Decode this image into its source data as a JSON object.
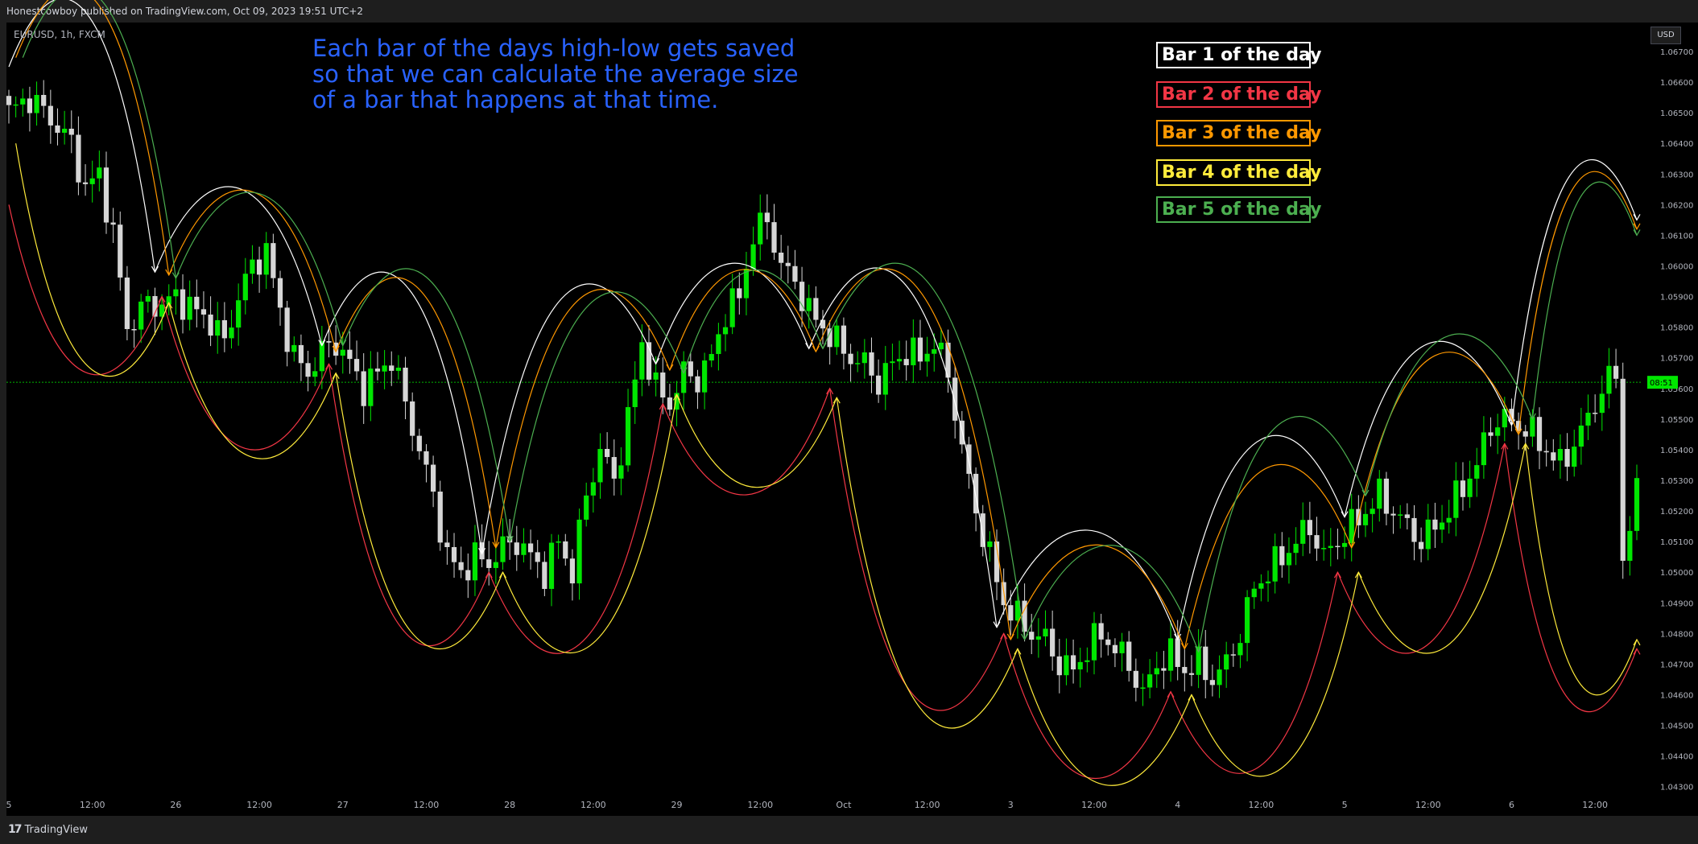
{
  "header": {
    "published": "Honestcowboy published on TradingView.com, Oct 09, 2023 19:51 UTC+2"
  },
  "footer": {
    "brand": "TradingView",
    "logo_icon": "tradingview-logo-icon"
  },
  "symbol_label": "EURUSD, 1h, FXCM",
  "currency_button": "USD",
  "annotation": "Each bar of the days high-low gets saved\nso that we can calculate the average size\nof a bar that happens at that time.",
  "colors": {
    "bull": "#00e600",
    "bear": "#d6d6d6",
    "bar1": "#ffffff",
    "bar2": "#f23645",
    "bar3": "#ff9800",
    "bar4": "#ffeb3b",
    "bar5": "#4caf50",
    "price_line": "#00e600"
  },
  "legend": [
    {
      "label": "Bar 1 of the day",
      "color": "#ffffff"
    },
    {
      "label": "Bar 2 of the day",
      "color": "#f23645"
    },
    {
      "label": "Bar 3 of the day",
      "color": "#ff9800"
    },
    {
      "label": "Bar 4 of the day",
      "color": "#ffeb3b"
    },
    {
      "label": "Bar 5 of the day",
      "color": "#4caf50"
    }
  ],
  "chart_data": {
    "type": "candlestick",
    "symbol": "EURUSD",
    "timeframe": "1h",
    "y_axis": {
      "range": [
        1.0425,
        1.0675
      ],
      "ticks": [
        "1.06700",
        "1.06600",
        "1.06500",
        "1.06400",
        "1.06300",
        "1.06200",
        "1.06100",
        "1.06000",
        "1.05900",
        "1.05800",
        "1.05700",
        "1.05600",
        "1.05500",
        "1.05400",
        "1.05300",
        "1.05200",
        "1.05100",
        "1.05000",
        "1.04900",
        "1.04800",
        "1.04700",
        "1.04600",
        "1.04500",
        "1.04400",
        "1.04300"
      ]
    },
    "x_axis": {
      "ticks": [
        {
          "label": "5",
          "bar": 0
        },
        {
          "label": "12:00",
          "bar": 12
        },
        {
          "label": "26",
          "bar": 24
        },
        {
          "label": "12:00",
          "bar": 36
        },
        {
          "label": "27",
          "bar": 48
        },
        {
          "label": "12:00",
          "bar": 60
        },
        {
          "label": "28",
          "bar": 72
        },
        {
          "label": "12:00",
          "bar": 84
        },
        {
          "label": "29",
          "bar": 96
        },
        {
          "label": "12:00",
          "bar": 108
        },
        {
          "label": "Oct",
          "bar": 120
        },
        {
          "label": "12:00",
          "bar": 132
        },
        {
          "label": "3",
          "bar": 144
        },
        {
          "label": "12:00",
          "bar": 156
        },
        {
          "label": "4",
          "bar": 168
        },
        {
          "label": "12:00",
          "bar": 180
        },
        {
          "label": "5",
          "bar": 192
        },
        {
          "label": "12:00",
          "bar": 204
        },
        {
          "label": "6",
          "bar": 216
        },
        {
          "label": "12:00",
          "bar": 228
        }
      ]
    },
    "current_price": {
      "value": 1.0562,
      "countdown": "08:51"
    },
    "closes_anchor": [
      [
        0,
        1.065
      ],
      [
        3,
        1.0655
      ],
      [
        6,
        1.0648
      ],
      [
        9,
        1.064
      ],
      [
        11,
        1.0625
      ],
      [
        13,
        1.063
      ],
      [
        15,
        1.061
      ],
      [
        17,
        1.058
      ],
      [
        20,
        1.0588
      ],
      [
        22,
        1.0587
      ],
      [
        24,
        1.059
      ],
      [
        27,
        1.0585
      ],
      [
        29,
        1.0582
      ],
      [
        31,
        1.0575
      ],
      [
        33,
        1.059
      ],
      [
        35,
        1.06
      ],
      [
        37,
        1.0605
      ],
      [
        39,
        1.0585
      ],
      [
        41,
        1.057
      ],
      [
        43,
        1.0565
      ],
      [
        45,
        1.0572
      ],
      [
        47,
        1.0575
      ],
      [
        49,
        1.0568
      ],
      [
        51,
        1.056
      ],
      [
        53,
        1.0565
      ],
      [
        55,
        1.057
      ],
      [
        57,
        1.0555
      ],
      [
        59,
        1.054
      ],
      [
        61,
        1.0525
      ],
      [
        63,
        1.0505
      ],
      [
        65,
        1.05
      ],
      [
        67,
        1.0505
      ],
      [
        69,
        1.0503
      ],
      [
        71,
        1.0508
      ],
      [
        73,
        1.051
      ],
      [
        75,
        1.0505
      ],
      [
        77,
        1.05
      ],
      [
        79,
        1.051
      ],
      [
        81,
        1.05
      ],
      [
        83,
        1.0525
      ],
      [
        85,
        1.054
      ],
      [
        87,
        1.053
      ],
      [
        89,
        1.055
      ],
      [
        91,
        1.0575
      ],
      [
        93,
        1.056
      ],
      [
        95,
        1.0555
      ],
      [
        97,
        1.0565
      ],
      [
        99,
        1.0563
      ],
      [
        101,
        1.057
      ],
      [
        103,
        1.0585
      ],
      [
        105,
        1.059
      ],
      [
        107,
        1.061
      ],
      [
        109,
        1.0615
      ],
      [
        111,
        1.06
      ],
      [
        113,
        1.0595
      ],
      [
        115,
        1.0585
      ],
      [
        117,
        1.058
      ],
      [
        119,
        1.0575
      ],
      [
        121,
        1.057
      ],
      [
        123,
        1.0568
      ],
      [
        125,
        1.0562
      ],
      [
        127,
        1.0568
      ],
      [
        129,
        1.0572
      ],
      [
        131,
        1.057
      ],
      [
        133,
        1.0575
      ],
      [
        135,
        1.0565
      ],
      [
        137,
        1.054
      ],
      [
        139,
        1.052
      ],
      [
        141,
        1.0505
      ],
      [
        143,
        1.049
      ],
      [
        145,
        1.0485
      ],
      [
        147,
        1.048
      ],
      [
        149,
        1.0478
      ],
      [
        151,
        1.047
      ],
      [
        153,
        1.0468
      ],
      [
        155,
        1.0475
      ],
      [
        157,
        1.048
      ],
      [
        159,
        1.0475
      ],
      [
        161,
        1.047
      ],
      [
        163,
        1.046
      ],
      [
        165,
        1.047
      ],
      [
        167,
        1.0473
      ],
      [
        169,
        1.0468
      ],
      [
        171,
        1.047
      ],
      [
        173,
        1.0465
      ],
      [
        175,
        1.047
      ],
      [
        177,
        1.048
      ],
      [
        179,
        1.0495
      ],
      [
        181,
        1.05
      ],
      [
        183,
        1.0505
      ],
      [
        185,
        1.051
      ],
      [
        187,
        1.0515
      ],
      [
        189,
        1.0505
      ],
      [
        191,
        1.051
      ],
      [
        193,
        1.0515
      ],
      [
        195,
        1.052
      ],
      [
        197,
        1.0525
      ],
      [
        199,
        1.052
      ],
      [
        201,
        1.0515
      ],
      [
        203,
        1.051
      ],
      [
        205,
        1.0515
      ],
      [
        207,
        1.052
      ],
      [
        209,
        1.0528
      ],
      [
        211,
        1.0535
      ],
      [
        213,
        1.0548
      ],
      [
        215,
        1.055
      ],
      [
        217,
        1.0548
      ],
      [
        219,
        1.0545
      ],
      [
        221,
        1.054
      ],
      [
        223,
        1.0535
      ],
      [
        225,
        1.0542
      ],
      [
        227,
        1.055
      ],
      [
        229,
        1.056
      ],
      [
        231,
        1.0565
      ],
      [
        232,
        1.0505
      ],
      [
        233,
        1.0515
      ],
      [
        234,
        1.0525
      ]
    ],
    "day_bars": [
      {
        "bar": 1,
        "color": "#ffffff",
        "anchors": [
          [
            0,
            1.0665
          ],
          [
            21,
            1.0598
          ],
          [
            45,
            1.0574
          ],
          [
            68,
            1.0506
          ],
          [
            93,
            1.0568
          ],
          [
            115,
            1.0573
          ],
          [
            142,
            1.0482
          ],
          [
            168,
            1.0478
          ],
          [
            192,
            1.0518
          ],
          [
            216,
            1.0548
          ],
          [
            234,
            1.0615
          ]
        ]
      },
      {
        "bar": 2,
        "color": "#f23645",
        "anchors": [
          [
            0,
            1.062
          ],
          [
            22,
            1.059
          ],
          [
            46,
            1.0568
          ],
          [
            69,
            1.05
          ],
          [
            94,
            1.0555
          ],
          [
            118,
            1.056
          ],
          [
            143,
            1.048
          ],
          [
            167,
            1.0461
          ],
          [
            191,
            1.05
          ],
          [
            215,
            1.0542
          ],
          [
            234,
            1.0475
          ]
        ]
      },
      {
        "bar": 3,
        "color": "#ff9800",
        "anchors": [
          [
            1,
            1.0668
          ],
          [
            23,
            1.0597
          ],
          [
            47,
            1.0572
          ],
          [
            70,
            1.0508
          ],
          [
            95,
            1.0566
          ],
          [
            116,
            1.0572
          ],
          [
            144,
            1.0478
          ],
          [
            169,
            1.0475
          ],
          [
            193,
            1.0508
          ],
          [
            217,
            1.0545
          ],
          [
            234,
            1.0612
          ]
        ]
      },
      {
        "bar": 4,
        "color": "#ffeb3b",
        "anchors": [
          [
            1,
            1.064
          ],
          [
            23,
            1.0588
          ],
          [
            47,
            1.0565
          ],
          [
            71,
            1.05
          ],
          [
            96,
            1.0558
          ],
          [
            119,
            1.0557
          ],
          [
            145,
            1.0475
          ],
          [
            170,
            1.046
          ],
          [
            194,
            1.05
          ],
          [
            218,
            1.0542
          ],
          [
            234,
            1.0478
          ]
        ]
      },
      {
        "bar": 5,
        "color": "#4caf50",
        "anchors": [
          [
            2,
            1.0668
          ],
          [
            24,
            1.0596
          ],
          [
            48,
            1.0574
          ],
          [
            72,
            1.051
          ],
          [
            97,
            1.0565
          ],
          [
            117,
            1.0573
          ],
          [
            146,
            1.0478
          ],
          [
            171,
            1.0474
          ],
          [
            195,
            1.0525
          ],
          [
            219,
            1.055
          ],
          [
            234,
            1.061
          ]
        ]
      }
    ]
  }
}
